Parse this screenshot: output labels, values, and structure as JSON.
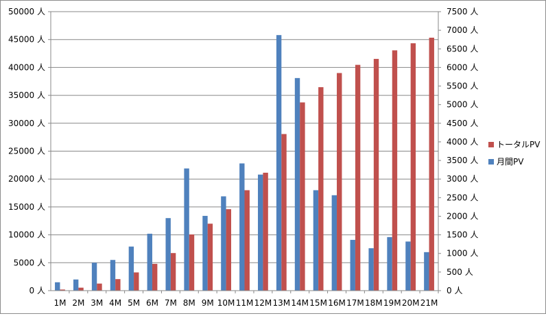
{
  "chart_data": {
    "type": "bar",
    "categories": [
      "1M",
      "2M",
      "3M",
      "4M",
      "5M",
      "6M",
      "7M",
      "8M",
      "9M",
      "10M",
      "11M",
      "12M",
      "13M",
      "14M",
      "15M",
      "16M",
      "17M",
      "18M",
      "19M",
      "20M",
      "21M"
    ],
    "series": [
      {
        "name": "月間PV",
        "axis": "left",
        "color": "#4F81BD",
        "values": [
          1500,
          2000,
          5000,
          5500,
          7900,
          10200,
          13000,
          21900,
          13400,
          16900,
          22800,
          20800,
          45800,
          38100,
          18000,
          17100,
          9100,
          7600,
          9600,
          8800,
          6900
        ]
      },
      {
        "name": "トータルPV",
        "axis": "right",
        "color": "#C0504D",
        "values": [
          30,
          80,
          190,
          310,
          490,
          720,
          1010,
          1510,
          1800,
          2190,
          2700,
          3170,
          4210,
          5060,
          5470,
          5850,
          6070,
          6230,
          6460,
          6650,
          6800
        ]
      }
    ],
    "left_axis": {
      "ylim": [
        0,
        50000
      ],
      "step": 5000,
      "unit": "人"
    },
    "right_axis": {
      "ylim": [
        0,
        7500
      ],
      "step": 500,
      "unit": "人"
    },
    "grid": true,
    "legend_position": "right"
  }
}
